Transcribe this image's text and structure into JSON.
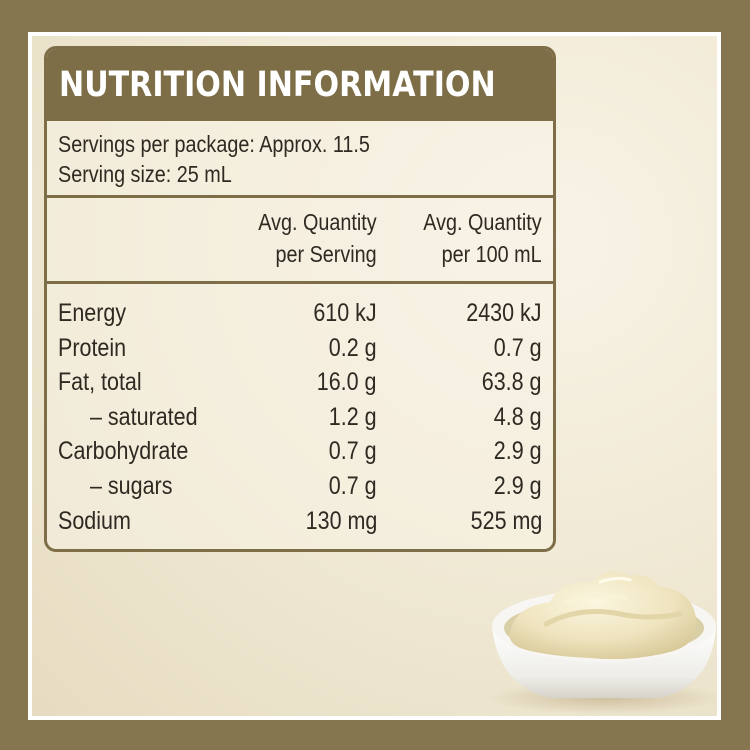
{
  "title": "NUTRITION INFORMATION",
  "servings_per_package": "Servings per package: Approx. 11.5",
  "serving_size": "Serving size: 25 mL",
  "columns": {
    "per_serving_line1": "Avg. Quantity",
    "per_serving_line2": "per Serving",
    "per_100_line1": "Avg. Quantity",
    "per_100_line2": "per 100 mL"
  },
  "rows": [
    {
      "name": "Energy",
      "per_serving": "610 kJ",
      "per_100": "2430 kJ",
      "indent": false
    },
    {
      "name": "Protein",
      "per_serving": "0.2 g",
      "per_100": "0.7 g",
      "indent": false
    },
    {
      "name": "Fat, total",
      "per_serving": "16.0 g",
      "per_100": "63.8 g",
      "indent": false
    },
    {
      "name": "– saturated",
      "per_serving": "1.2 g",
      "per_100": "4.8 g",
      "indent": true
    },
    {
      "name": "Carbohydrate",
      "per_serving": "0.7 g",
      "per_100": "2.9 g",
      "indent": false
    },
    {
      "name": "– sugars",
      "per_serving": "0.7 g",
      "per_100": "2.9 g",
      "indent": true
    },
    {
      "name": "Sodium",
      "per_serving": "130 mg",
      "per_100": "525 mg",
      "indent": false
    }
  ],
  "colors": {
    "frame": "#857650",
    "panel_border": "#7d6e47",
    "text": "#2e2a22"
  }
}
